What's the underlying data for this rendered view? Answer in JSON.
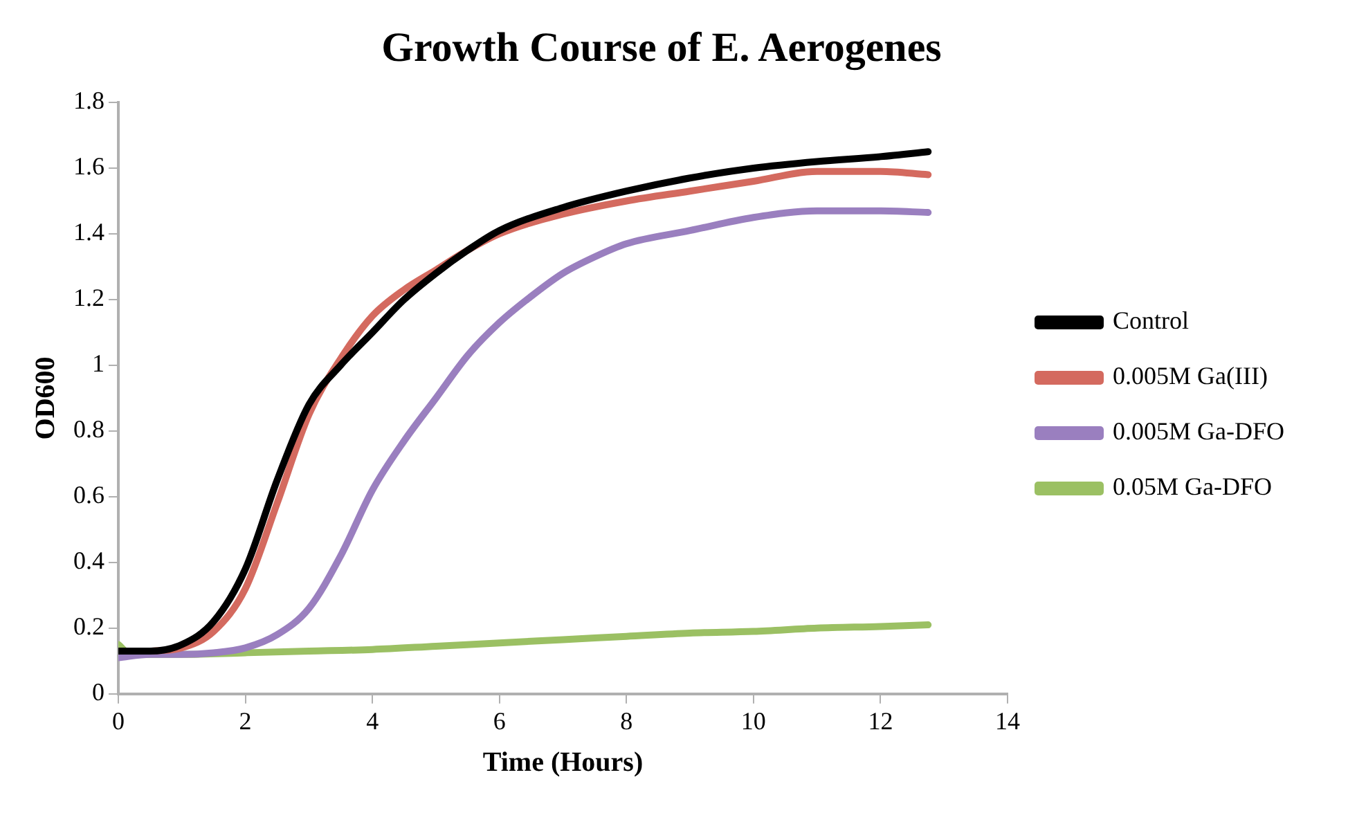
{
  "chart_data": {
    "type": "line",
    "title": "Growth Course of E. Aerogenes",
    "xlabel": "Time (Hours)",
    "ylabel": "OD600",
    "xlim": [
      0,
      14
    ],
    "xticks": [
      0,
      2,
      4,
      6,
      8,
      10,
      12,
      14
    ],
    "ylim": [
      0,
      1.8
    ],
    "yticks": [
      0,
      0.2,
      0.4,
      0.6,
      0.8,
      1,
      1.2,
      1.4,
      1.6,
      1.8
    ],
    "grid": false,
    "legend": "right",
    "marker": "none",
    "line_style": "solid",
    "series": [
      {
        "name": "Control",
        "color": "#000000",
        "x": [
          0,
          0.5,
          1,
          1.5,
          2,
          2.5,
          3,
          3.5,
          4,
          4.5,
          5,
          5.5,
          6,
          7,
          8,
          9,
          10,
          11,
          12,
          12.75
        ],
        "values": [
          0.13,
          0.13,
          0.15,
          0.22,
          0.38,
          0.65,
          0.88,
          1.0,
          1.1,
          1.2,
          1.28,
          1.35,
          1.41,
          1.48,
          1.53,
          1.57,
          1.6,
          1.62,
          1.635,
          1.65
        ]
      },
      {
        "name": "0.005M Ga(III)",
        "color": "#d46a5f",
        "x": [
          0.5,
          1,
          1.5,
          2,
          2.5,
          3,
          3.5,
          4,
          4.5,
          5,
          5.5,
          6,
          7,
          8,
          9,
          10,
          11,
          12,
          12.75
        ],
        "values": [
          0.13,
          0.14,
          0.19,
          0.32,
          0.58,
          0.85,
          1.02,
          1.15,
          1.23,
          1.29,
          1.35,
          1.4,
          1.46,
          1.5,
          1.53,
          1.56,
          1.59,
          1.59,
          1.58
        ]
      },
      {
        "name": "0.005M Ga-DFO",
        "color": "#9a7fbf",
        "x": [
          0,
          0.5,
          1,
          1.5,
          2,
          2.5,
          3,
          3.5,
          4,
          4.5,
          5,
          5.5,
          6,
          6.5,
          7,
          7.5,
          8,
          9,
          10,
          11,
          12,
          12.75
        ],
        "values": [
          0.11,
          0.12,
          0.12,
          0.125,
          0.14,
          0.18,
          0.26,
          0.42,
          0.62,
          0.77,
          0.9,
          1.03,
          1.13,
          1.21,
          1.28,
          1.33,
          1.37,
          1.41,
          1.45,
          1.47,
          1.47,
          1.465
        ]
      },
      {
        "name": "0.05M Ga-DFO",
        "color": "#9bc063",
        "x": [
          0,
          0.2,
          1,
          2,
          3,
          4,
          5,
          6,
          7,
          8,
          9,
          10,
          11,
          12,
          12.75
        ],
        "values": [
          0.15,
          0.12,
          0.12,
          0.125,
          0.13,
          0.135,
          0.145,
          0.155,
          0.165,
          0.175,
          0.185,
          0.19,
          0.2,
          0.205,
          0.21
        ]
      }
    ]
  }
}
